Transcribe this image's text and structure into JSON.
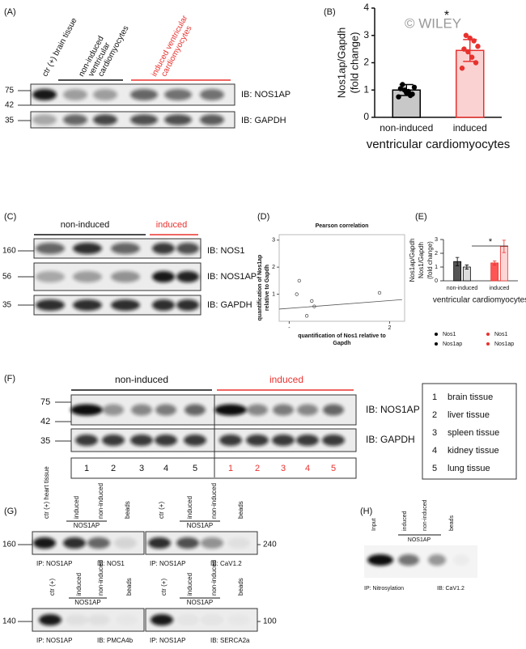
{
  "panels": {
    "A": {
      "label": "(A)",
      "lanes": [
        [
          "ctr (+) brain tissue"
        ],
        [
          "non-induced",
          "ventricular",
          "cardiomyocytes"
        ],
        [
          "induced ventricular",
          "cardiomyocytes"
        ]
      ],
      "markers": [
        "75",
        "42",
        "35"
      ],
      "blots": [
        "IB: NOS1AP",
        "IB: GAPDH"
      ]
    },
    "C": {
      "label": "(C)",
      "groups": [
        "non-induced",
        "induced"
      ],
      "markers": [
        "160",
        "56",
        "35"
      ],
      "blots": [
        "IB: NOS1",
        "IB: NOS1AP",
        "IB: GAPDH"
      ]
    },
    "F": {
      "label": "(F)",
      "groups": [
        "non-induced",
        "induced"
      ],
      "markers": [
        "75",
        "42",
        "35"
      ],
      "blots": [
        "IB: NOS1AP",
        "IB: GAPDH"
      ],
      "lanes": [
        "1",
        "2",
        "3",
        "4",
        "5"
      ],
      "legend": [
        {
          "number": "1",
          "tissue": "brain tissue"
        },
        {
          "number": "2",
          "tissue": "liver tissue"
        },
        {
          "number": "3",
          "tissue": "spleen tissue"
        },
        {
          "number": "4",
          "tissue": "kidney tissue"
        },
        {
          "number": "5",
          "tissue": "lung tissue"
        }
      ]
    },
    "G": {
      "label": "(G)",
      "blots": [
        {
          "lanes": [
            "ctr (+) heart tissue",
            "induced",
            "non-induced",
            "beads"
          ],
          "group": "NOS1AP",
          "marker": "160",
          "ip": "IP: NOS1AP",
          "ib": "IB: NOS1"
        },
        {
          "lanes": [
            "ctr (+)",
            "induced",
            "non-induced",
            "beads"
          ],
          "group": "NOS1AP",
          "marker": "240",
          "ip": "IP: NOS1AP",
          "ib": "IB: CaV1.2"
        },
        {
          "lanes": [
            "ctr (+)",
            "induced",
            "non-induced",
            "beads"
          ],
          "group": "NOS1AP",
          "marker": "140",
          "ip": "IP: NOS1AP",
          "ib": "IB: PMCA4b"
        },
        {
          "lanes": [
            "ctr (+)",
            "induced",
            "non-induced",
            "beads"
          ],
          "group": "NOS1AP",
          "marker": "100",
          "ip": "IP: NOS1AP",
          "ib": "IB: SERCA2a"
        }
      ]
    },
    "H": {
      "label": "(H)",
      "lanes": [
        "Input",
        "induced",
        "non-induced",
        "beads"
      ],
      "group": "NOS1AP",
      "ip": "IP: Nitrosylation",
      "ib": "IB: CaV1.2"
    }
  },
  "chart_data": [
    {
      "type": "bar",
      "label": "(B)",
      "y_label": [
        "Nos1ap/Gapdh",
        "(fold change)"
      ],
      "x_label": "ventricular cardiomyocytes",
      "categories": [
        "non-induced",
        "induced"
      ],
      "values": [
        1.0,
        2.45
      ],
      "errors": [
        0.2,
        0.4
      ],
      "points": [
        [
          0.75,
          0.85,
          0.95,
          1.0,
          1.05,
          1.1,
          0.8,
          0.9,
          1.2
        ],
        [
          1.8,
          2.0,
          2.2,
          2.4,
          2.5,
          2.6,
          2.8,
          2.9,
          3.0
        ]
      ],
      "colors": [
        "#c8c8c8",
        "#fbd2d2"
      ],
      "edge_colors": [
        "#000000",
        "#e8322e"
      ],
      "ylim": [
        0,
        4
      ],
      "yticks": [
        0,
        1,
        2,
        3,
        4
      ],
      "annotation": "*",
      "watermark": "© WILEY"
    },
    {
      "type": "scatter",
      "label": "(D)",
      "title": "Pearson correlation",
      "x_label": [
        "quantification of Nos1 relative to",
        "Gapdh"
      ],
      "y_label": [
        "quantification of Nos1ap",
        "relative to Gapdh"
      ],
      "x": [
        0.2,
        0.15,
        0.45,
        0.5,
        0.35,
        1.8
      ],
      "y": [
        1.5,
        1.0,
        0.75,
        0.55,
        0.2,
        1.05
      ],
      "fit": {
        "x": [
          -0.2,
          2.25
        ],
        "y": [
          0.45,
          0.8
        ]
      },
      "xlim": [
        -0.2,
        2.3
      ],
      "ylim": [
        0,
        3.2
      ],
      "xticks": [
        {
          "value": 0,
          "label": "-"
        },
        2
      ],
      "yticks": [
        1,
        2,
        3
      ]
    },
    {
      "type": "bar",
      "label": "(E)",
      "y_label": [
        "Nos1ap/Gapdh",
        "Nos1/Gapdh",
        "(fold change)"
      ],
      "x_label": "ventricular cardiomyocytes",
      "categories": [
        "non-induced",
        "induced"
      ],
      "series": [
        {
          "name": "Nos1",
          "color": "#555555",
          "edge": "#000000",
          "values": [
            1.4,
            null
          ],
          "errors": [
            0.3,
            null
          ]
        },
        {
          "name": "Nos1ap",
          "color": "#dddddd",
          "edge": "#000000",
          "values": [
            1.0,
            null
          ],
          "errors": [
            0.15,
            null
          ]
        },
        {
          "name": "Nos1",
          "color": "#ff5555",
          "edge": "#e8322e",
          "values": [
            null,
            1.3
          ],
          "errors": [
            null,
            0.15
          ]
        },
        {
          "name": "Nos1ap",
          "color": "#ffd6d6",
          "edge": "#e8322e",
          "values": [
            null,
            2.5
          ],
          "errors": [
            null,
            0.45
          ]
        }
      ],
      "ylim": [
        0,
        3
      ],
      "yticks": [
        0,
        1,
        2,
        3
      ],
      "annotation": "*"
    }
  ]
}
